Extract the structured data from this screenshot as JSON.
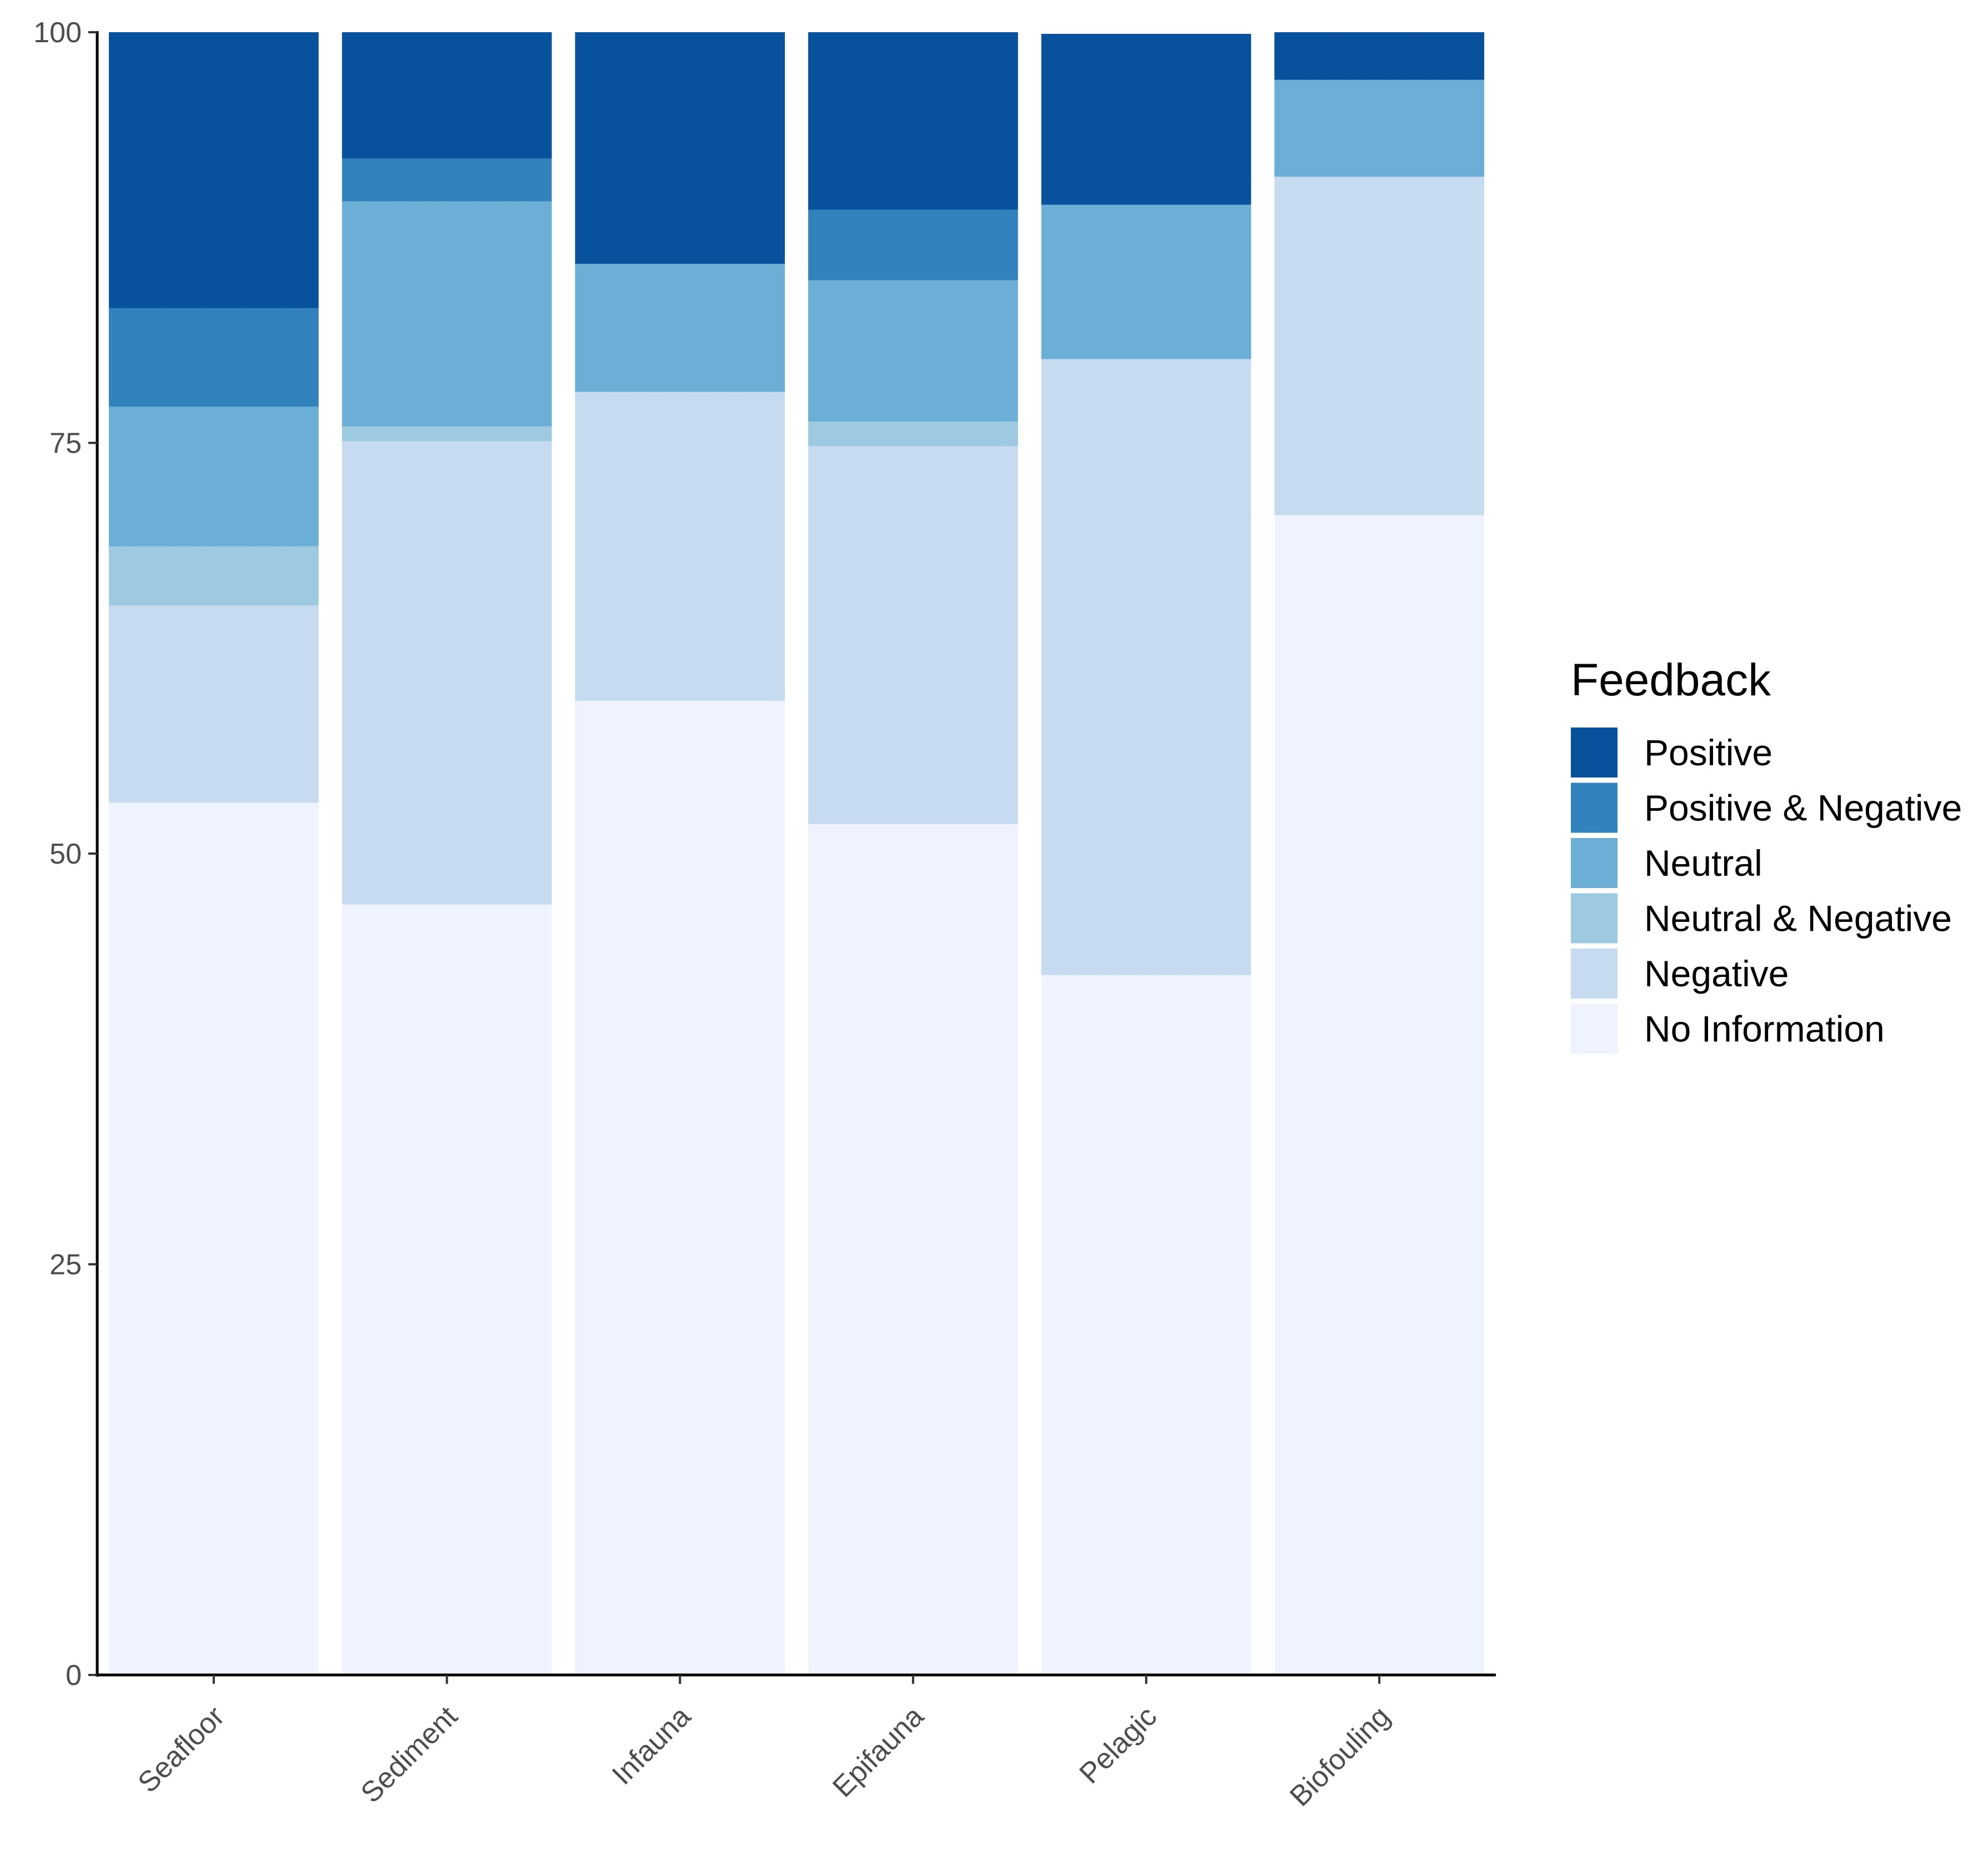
{
  "chart_data": {
    "type": "bar",
    "stacked": true,
    "categories": [
      "Seafloor",
      "Sediment",
      "Infauna",
      "Epifauna",
      "Pelagic",
      "Biofouling"
    ],
    "ylim": [
      0,
      100
    ],
    "yticks": [
      0,
      25,
      50,
      75,
      100
    ],
    "xlabel": "",
    "ylabel": "",
    "grid": false,
    "legend": {
      "title": "Feedback",
      "placement": "right"
    },
    "series": [
      {
        "name": "No Information",
        "color": "#eff3ff",
        "values": [
          53.1,
          46.9,
          59.3,
          51.8,
          42.6,
          70.6
        ]
      },
      {
        "name": "Negative",
        "color": "#c6dbef",
        "values": [
          12.0,
          28.2,
          18.8,
          23.0,
          37.5,
          20.6
        ]
      },
      {
        "name": "Neutral & Negative",
        "color": "#9ecae1",
        "values": [
          3.6,
          0.9,
          0.0,
          1.5,
          0.0,
          0.0
        ]
      },
      {
        "name": "Neutral",
        "color": "#6baed6",
        "values": [
          8.5,
          13.7,
          7.8,
          8.6,
          9.4,
          5.9
        ]
      },
      {
        "name": "Positive & Negative",
        "color": "#3182bd",
        "values": [
          6.0,
          2.6,
          0.0,
          4.3,
          0.0,
          0.0
        ]
      },
      {
        "name": "Positive",
        "color": "#08519c",
        "values": [
          16.8,
          7.7,
          14.1,
          10.8,
          10.4,
          2.9
        ]
      }
    ],
    "legend_order": [
      "Positive",
      "Positive & Negative",
      "Neutral",
      "Neutral & Negative",
      "Negative",
      "No Information"
    ]
  }
}
